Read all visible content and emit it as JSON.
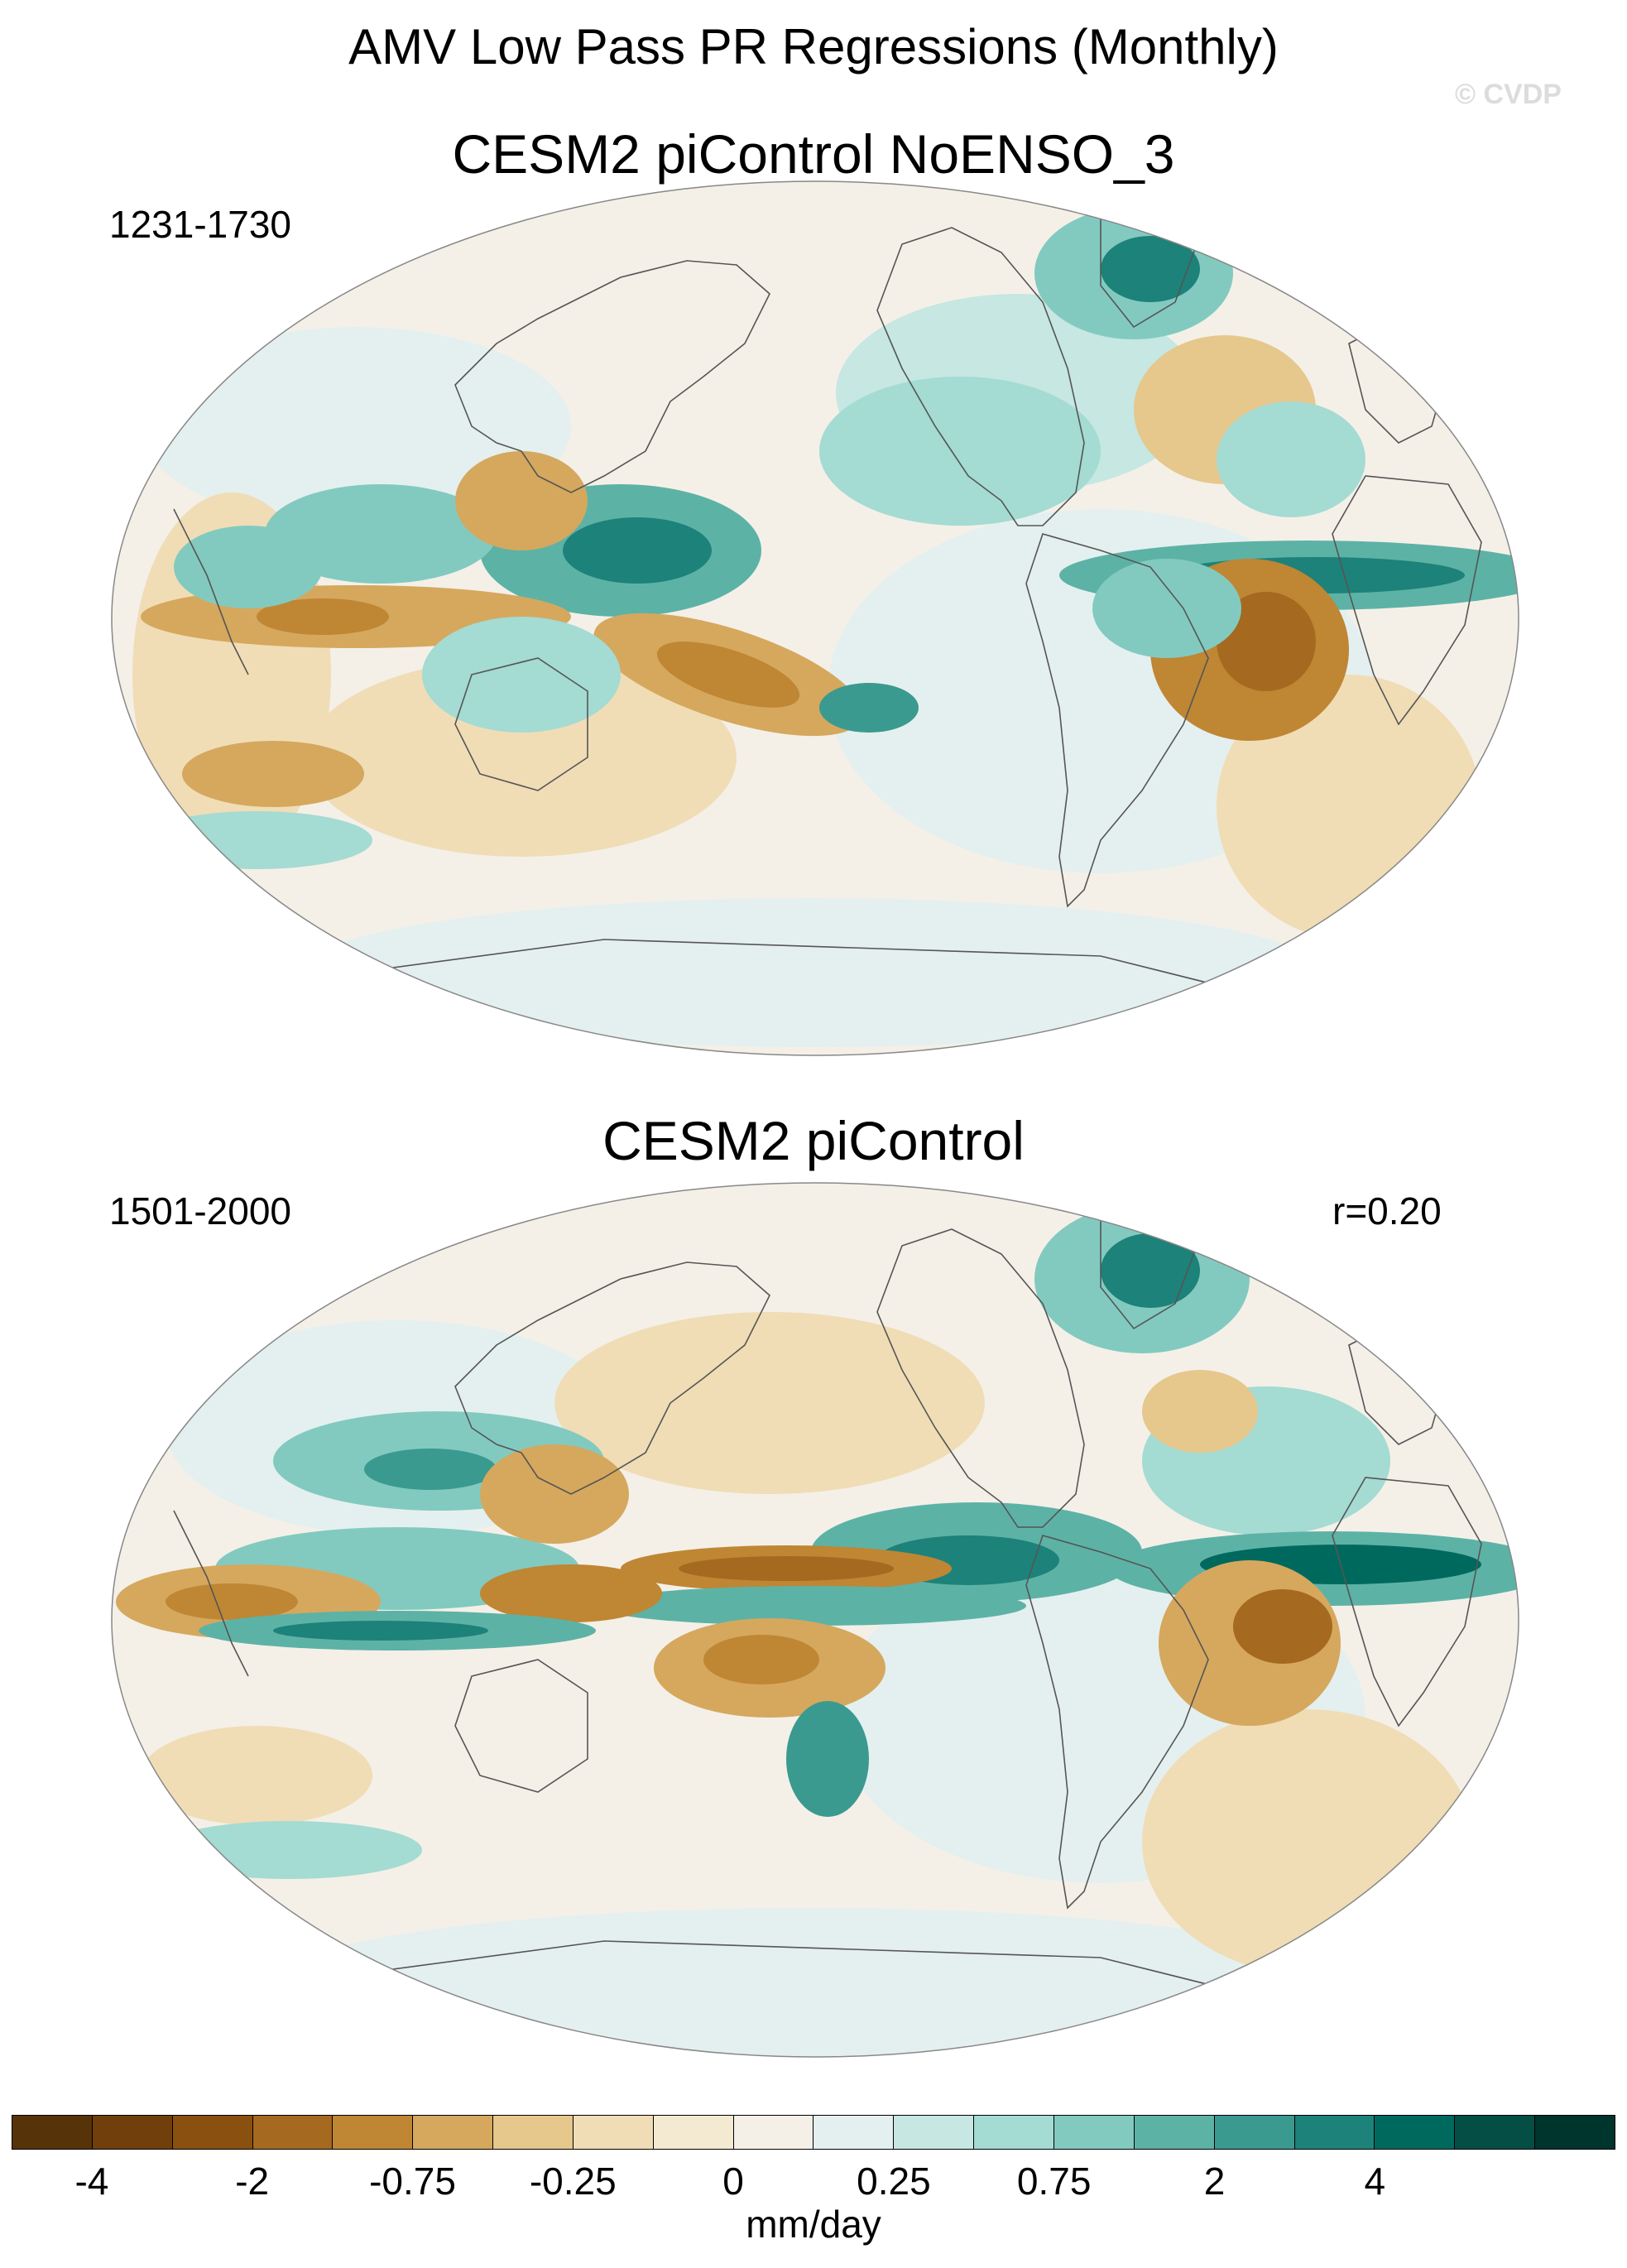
{
  "figure": {
    "title": "AMV Low Pass PR Regressions (Monthly)",
    "watermark": "© CVDP"
  },
  "panels": [
    {
      "title": "CESM2 piControl NoENSO_3",
      "period": "1231-1730",
      "correlation": ""
    },
    {
      "title": "CESM2 piControl",
      "period": "1501-2000",
      "correlation": "r=0.20"
    }
  ],
  "colorbar": {
    "units": "mm/day",
    "colors": [
      "#573309",
      "#703f0c",
      "#8a5010",
      "#a5691f",
      "#bf8634",
      "#d5a85e",
      "#e6c78c",
      "#f0ddb6",
      "#f4ead1",
      "#f4f0e8",
      "#e4f0ef",
      "#c6e7e2",
      "#a4dbd3",
      "#82cac0",
      "#5db2a6",
      "#3a9a8f",
      "#1d8279",
      "#00695e",
      "#044e45",
      "#00352e"
    ],
    "tick_labels": [
      "-4",
      "-2",
      "-0.75",
      "-0.25",
      "0",
      "0.25",
      "0.75",
      "2",
      "4"
    ]
  }
}
